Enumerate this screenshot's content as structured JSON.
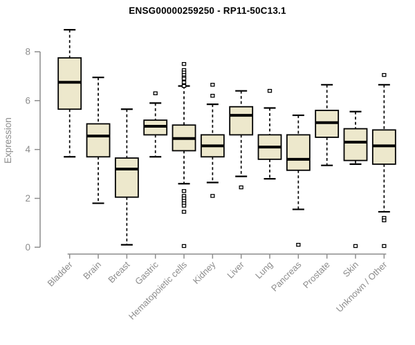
{
  "chart_data": {
    "type": "boxplot",
    "title": "ENSG00000259250 - RP11-50C13.1",
    "ylabel": "Expression",
    "ylim": [
      0,
      8
    ],
    "yticks": [
      0,
      2,
      4,
      6,
      8
    ],
    "grid": false,
    "legend": null,
    "categories": [
      "Bladder",
      "Brain",
      "Breast",
      "Gastric",
      "Hematopoietic cells",
      "Kidney",
      "Liver",
      "Lung",
      "Pancreas",
      "Prostate",
      "Skin",
      "Unknown / Other"
    ],
    "boxes": [
      {
        "category": "Bladder",
        "whisker_low": 3.7,
        "q1": 5.65,
        "median": 6.75,
        "q3": 7.75,
        "whisker_high": 8.9,
        "outliers": []
      },
      {
        "category": "Brain",
        "whisker_low": 1.8,
        "q1": 3.7,
        "median": 4.55,
        "q3": 5.05,
        "whisker_high": 6.95,
        "outliers": []
      },
      {
        "category": "Breast",
        "whisker_low": 0.1,
        "q1": 2.05,
        "median": 3.2,
        "q3": 3.65,
        "whisker_high": 5.65,
        "outliers": []
      },
      {
        "category": "Gastric",
        "whisker_low": 3.7,
        "q1": 4.6,
        "median": 4.95,
        "q3": 5.2,
        "whisker_high": 5.9,
        "outliers": [
          6.3
        ]
      },
      {
        "category": "Hematopoietic cells",
        "whisker_low": 2.6,
        "q1": 3.95,
        "median": 4.45,
        "q3": 5.0,
        "whisker_high": 6.6,
        "outliers": [
          7.5,
          7.25,
          7.15,
          7.05,
          6.95,
          6.9,
          6.75,
          6.6,
          2.3,
          2.1,
          2.0,
          1.9,
          1.8,
          1.7,
          1.45,
          0.05
        ]
      },
      {
        "category": "Kidney",
        "whisker_low": 2.65,
        "q1": 3.7,
        "median": 4.15,
        "q3": 4.6,
        "whisker_high": 5.85,
        "outliers": [
          6.65,
          6.2,
          2.1
        ]
      },
      {
        "category": "Liver",
        "whisker_low": 2.9,
        "q1": 4.6,
        "median": 5.4,
        "q3": 5.75,
        "whisker_high": 6.4,
        "outliers": [
          2.45
        ]
      },
      {
        "category": "Lung",
        "whisker_low": 2.8,
        "q1": 3.6,
        "median": 4.1,
        "q3": 4.6,
        "whisker_high": 5.7,
        "outliers": [
          6.4
        ]
      },
      {
        "category": "Pancreas",
        "whisker_low": 1.55,
        "q1": 3.15,
        "median": 3.6,
        "q3": 4.6,
        "whisker_high": 5.4,
        "outliers": [
          0.1
        ]
      },
      {
        "category": "Prostate",
        "whisker_low": 3.35,
        "q1": 4.5,
        "median": 5.1,
        "q3": 5.6,
        "whisker_high": 6.65,
        "outliers": []
      },
      {
        "category": "Skin",
        "whisker_low": 3.4,
        "q1": 3.55,
        "median": 4.3,
        "q3": 4.85,
        "whisker_high": 5.55,
        "outliers": [
          0.05
        ]
      },
      {
        "category": "Unknown / Other",
        "whisker_low": 1.45,
        "q1": 3.4,
        "median": 4.15,
        "q3": 4.8,
        "whisker_high": 6.65,
        "outliers": [
          7.05,
          1.2,
          1.1,
          0.05
        ]
      }
    ],
    "colors": {
      "box_fill": "#EDE8CC",
      "box_stroke": "#000000",
      "median": "#000000",
      "whisker": "#000000",
      "outlier_stroke": "#000000",
      "axis": "#8C8C8C",
      "title": "#000000",
      "background": "#FFFFFF"
    }
  }
}
